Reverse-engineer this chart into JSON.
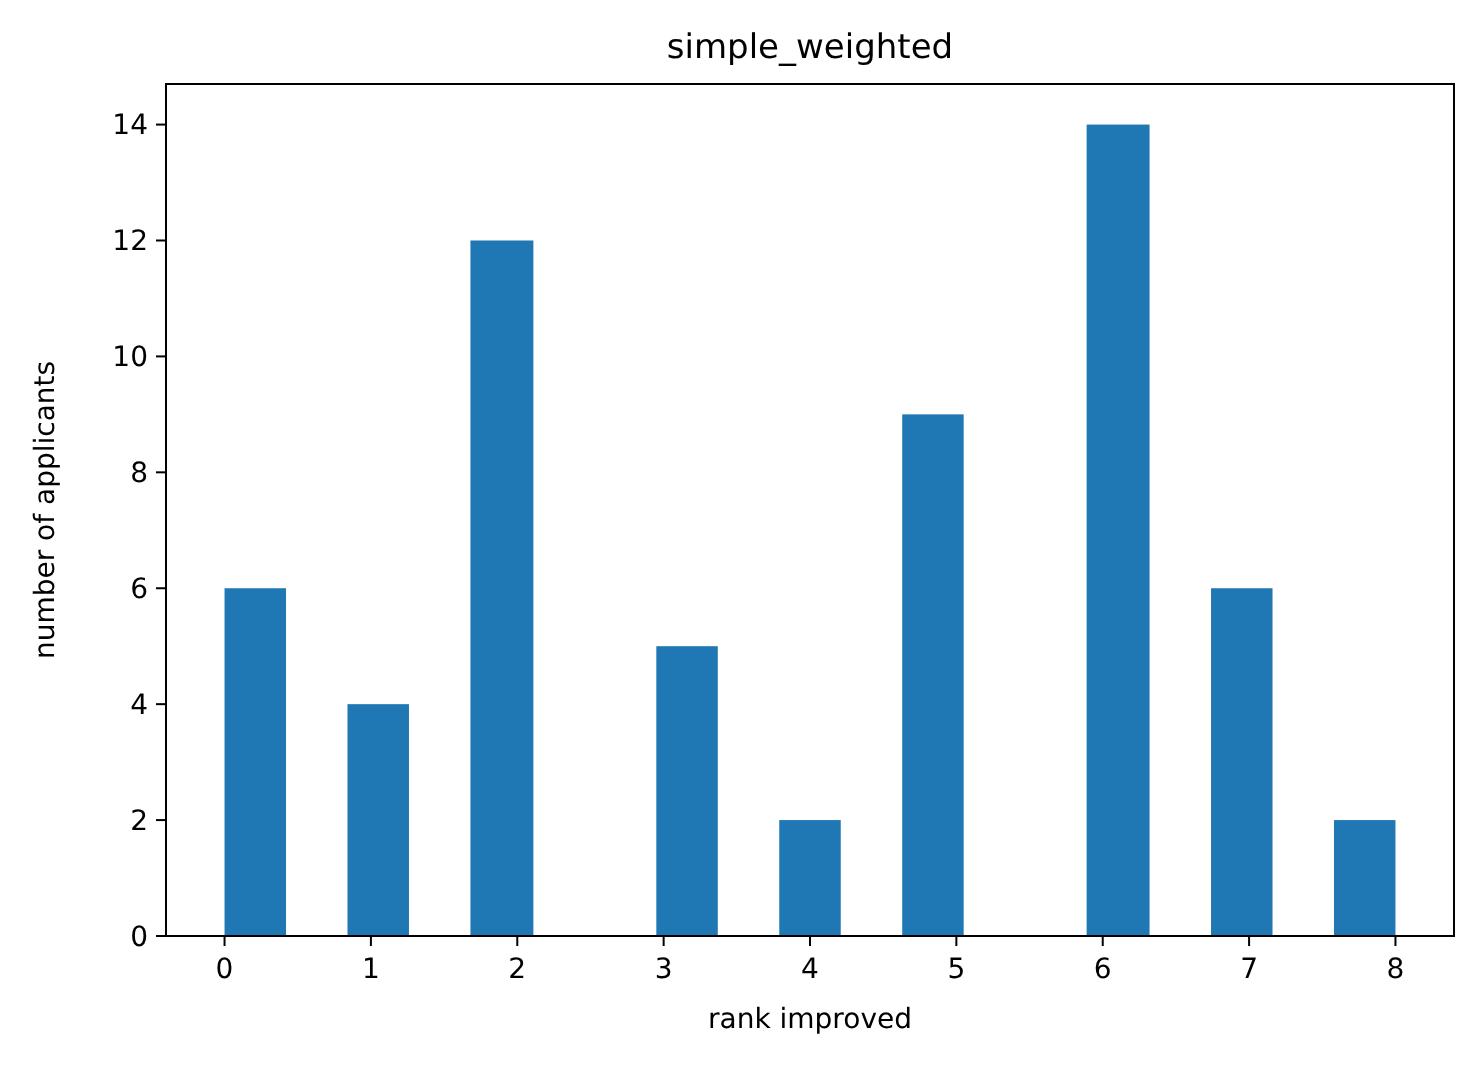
{
  "chart_data": {
    "type": "histogram",
    "title": "simple_weighted",
    "xlabel": "rank improved",
    "ylabel": "number of applicants",
    "bins": [
      0,
      0.42,
      0.84,
      1.26,
      1.68,
      2.11,
      2.95,
      3.37,
      3.79,
      4.21,
      4.63,
      5.05,
      5.89,
      6.32,
      6.74,
      7.16,
      7.58,
      8
    ],
    "values": [
      6,
      0,
      4,
      0,
      12,
      0,
      5,
      0,
      2,
      0,
      9,
      0,
      14,
      0,
      6,
      0,
      2
    ],
    "color": "#1f77b4",
    "xlim": [
      -0.4,
      8.4
    ],
    "ylim": [
      0,
      14.7
    ],
    "xticks": [
      0,
      1,
      2,
      3,
      4,
      5,
      6,
      7,
      8
    ],
    "yticks": [
      0,
      2,
      4,
      6,
      8,
      10,
      12,
      14
    ],
    "grid": false
  }
}
